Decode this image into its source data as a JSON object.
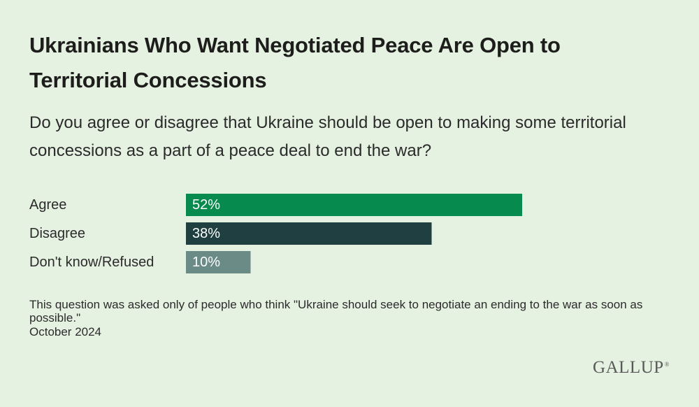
{
  "header": {
    "title": "Ukrainians Who Want Negotiated Peace Are Open to Territorial Concessions",
    "subtitle": "Do you agree or disagree that Ukraine should be open to making some territorial concessions as a part of a peace deal to end the war?"
  },
  "chart_data": {
    "type": "bar",
    "orientation": "horizontal",
    "categories": [
      "Agree",
      "Disagree",
      "Don't know/Refused"
    ],
    "values": [
      52,
      38,
      10
    ],
    "value_labels": [
      "52%",
      "38%",
      "10%"
    ],
    "colors": [
      "#078a4d",
      "#1f3f40",
      "#6a8b86"
    ],
    "xlim": [
      0,
      100
    ],
    "grid": false
  },
  "footer": {
    "note": "This question was asked only of people who think \"Ukraine should seek to negotiate an ending to the war as soon as possible.\"",
    "date": "October 2024",
    "logo": "GALLUP",
    "logo_mark": "®"
  }
}
